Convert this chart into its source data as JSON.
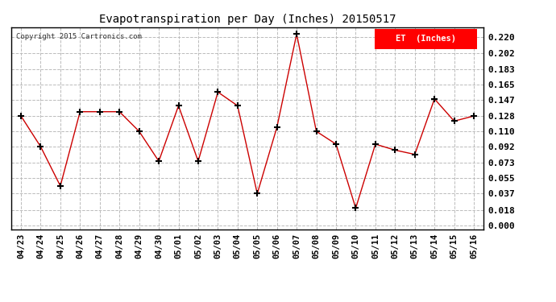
{
  "title": "Evapotranspiration per Day (Inches) 20150517",
  "copyright": "Copyright 2015 Cartronics.com",
  "legend_label": "ET  (Inches)",
  "legend_bg": "#ff0000",
  "legend_text_color": "#ffffff",
  "dates": [
    "04/23",
    "04/24",
    "04/25",
    "04/26",
    "04/27",
    "04/28",
    "04/29",
    "04/30",
    "05/01",
    "05/02",
    "05/03",
    "05/04",
    "05/05",
    "05/06",
    "05/07",
    "05/08",
    "05/09",
    "05/10",
    "05/11",
    "05/12",
    "05/13",
    "05/14",
    "05/15",
    "05/16"
  ],
  "values": [
    0.128,
    0.092,
    0.046,
    0.133,
    0.133,
    0.133,
    0.11,
    0.075,
    0.14,
    0.075,
    0.156,
    0.14,
    0.037,
    0.115,
    0.224,
    0.11,
    0.095,
    0.02,
    0.095,
    0.088,
    0.083,
    0.148,
    0.122,
    0.128
  ],
  "line_color": "#cc0000",
  "marker_color": "#000000",
  "bg_color": "#ffffff",
  "grid_color": "#bbbbbb",
  "yticks": [
    0.0,
    0.018,
    0.037,
    0.055,
    0.073,
    0.092,
    0.11,
    0.128,
    0.147,
    0.165,
    0.183,
    0.202,
    0.22
  ]
}
